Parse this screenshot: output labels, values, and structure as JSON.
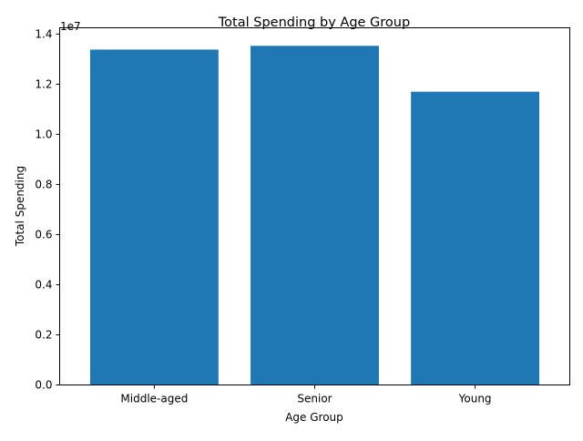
{
  "chart_data": {
    "type": "bar",
    "title": "Total Spending by Age Group",
    "xlabel": "Age Group",
    "ylabel": "Total Spending",
    "categories": [
      "Middle-aged",
      "Senior",
      "Young"
    ],
    "values": [
      13380000,
      13530000,
      11700000
    ],
    "ylim": [
      0,
      14250000
    ],
    "yticks": [
      0,
      2000000,
      4000000,
      6000000,
      8000000,
      10000000,
      12000000,
      14000000
    ],
    "ytick_labels": [
      "0.0",
      "0.2",
      "0.4",
      "0.6",
      "0.8",
      "1.0",
      "1.2",
      "1.4"
    ],
    "y_offset_label": "1e7",
    "bar_color": "#1f77b4",
    "grid": false,
    "legend": "none"
  }
}
